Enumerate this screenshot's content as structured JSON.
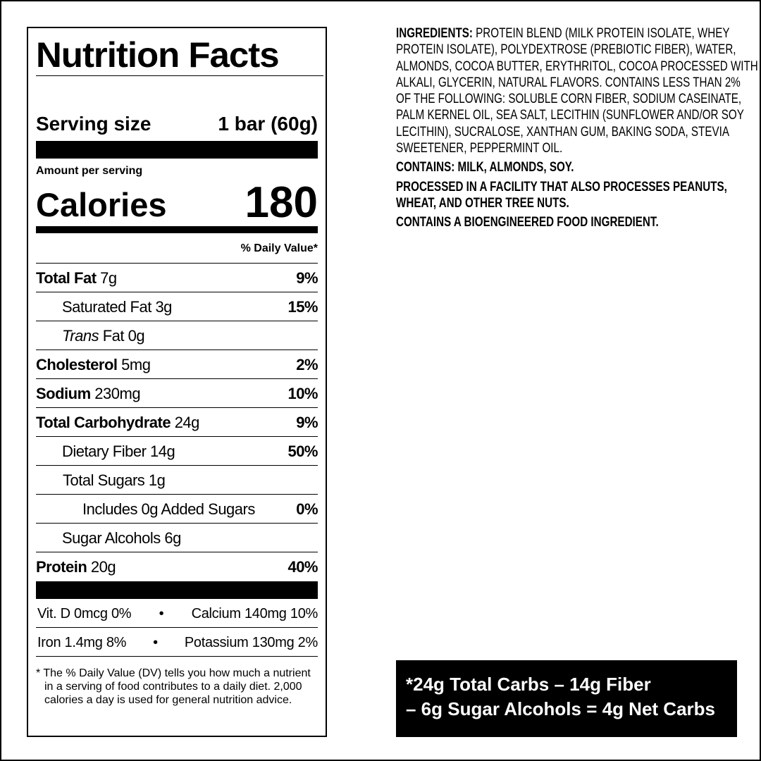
{
  "label": {
    "title": "Nutrition Facts",
    "serving_label": "Serving size",
    "serving_value": "1 bar (60g)",
    "amount_per_serving": "Amount per serving",
    "calories_label": "Calories",
    "calories_value": "180",
    "daily_value_header": "% Daily Value*",
    "rows": [
      {
        "name": "Total Fat",
        "amount": "7g",
        "dv": "9%"
      },
      {
        "name": "Saturated Fat",
        "amount": "3g",
        "dv": "15%"
      },
      {
        "prefix": "Trans",
        "name": "Fat",
        "amount": "0g",
        "dv": ""
      },
      {
        "name": "Cholesterol",
        "amount": "5mg",
        "dv": "2%"
      },
      {
        "name": "Sodium",
        "amount": "230mg",
        "dv": "10%"
      },
      {
        "name": "Total Carbohydrate",
        "amount": "24g",
        "dv": "9%"
      },
      {
        "name": "Dietary Fiber",
        "amount": "14g",
        "dv": "50%"
      },
      {
        "name": "Total Sugars",
        "amount": "1g",
        "dv": ""
      },
      {
        "name": "Includes 0g Added Sugars",
        "amount": "",
        "dv": "0%"
      },
      {
        "name": "Sugar Alcohols",
        "amount": "6g",
        "dv": ""
      },
      {
        "name": "Protein",
        "amount": "20g",
        "dv": "40%"
      }
    ],
    "vitamins": [
      {
        "left": "Vit. D 0mcg 0%",
        "sep": "•",
        "right": "Calcium 140mg 10%"
      },
      {
        "left": "Iron 1.4mg 8%",
        "sep": "•",
        "right": "Potassium 130mg 2%"
      }
    ],
    "footnote": "* The % Daily Value (DV) tells you how much a nutrient in a serving of food contributes to a daily diet. 2,000 calories a day is used for general nutrition advice."
  },
  "ingredients": {
    "heading": "INGREDIENTS:",
    "lines": [
      " PROTEIN BLEND (MILK PROTEIN ISOLATE, WHEY",
      "PROTEIN ISOLATE), POLYDEXTROSE (PREBIOTIC FIBER), WATER,",
      "ALMONDS, COCOA BUTTER, ERYTHRITOL, COCOA PROCESSED WITH",
      "ALKALI, GLYCERIN, NATURAL FLAVORS. CONTAINS LESS THAN 2%",
      "OF THE FOLLOWING: SOLUBLE CORN FIBER, SODIUM CASEINATE,",
      "PALM KERNEL OIL, SEA SALT, LECITHIN (SUNFLOWER AND/OR SOY",
      "LECITHIN), SUCRALOSE, XANTHAN GUM, BAKING SODA, STEVIA",
      "SWEETENER, PEPPERMINT OIL."
    ],
    "contains": "CONTAINS: MILK, ALMONDS, SOY.",
    "facility_1": "PROCESSED IN A FACILITY THAT ALSO PROCESSES PEANUTS,",
    "facility_2": "WHEAT, AND OTHER TREE NUTS.",
    "bioengineered": "CONTAINS A BIOENGINEERED FOOD INGREDIENT."
  },
  "net_carbs": {
    "line1": "*24g Total Carbs – 14g Fiber",
    "line2": "– 6g Sugar Alcohols = 4g Net Carbs"
  }
}
